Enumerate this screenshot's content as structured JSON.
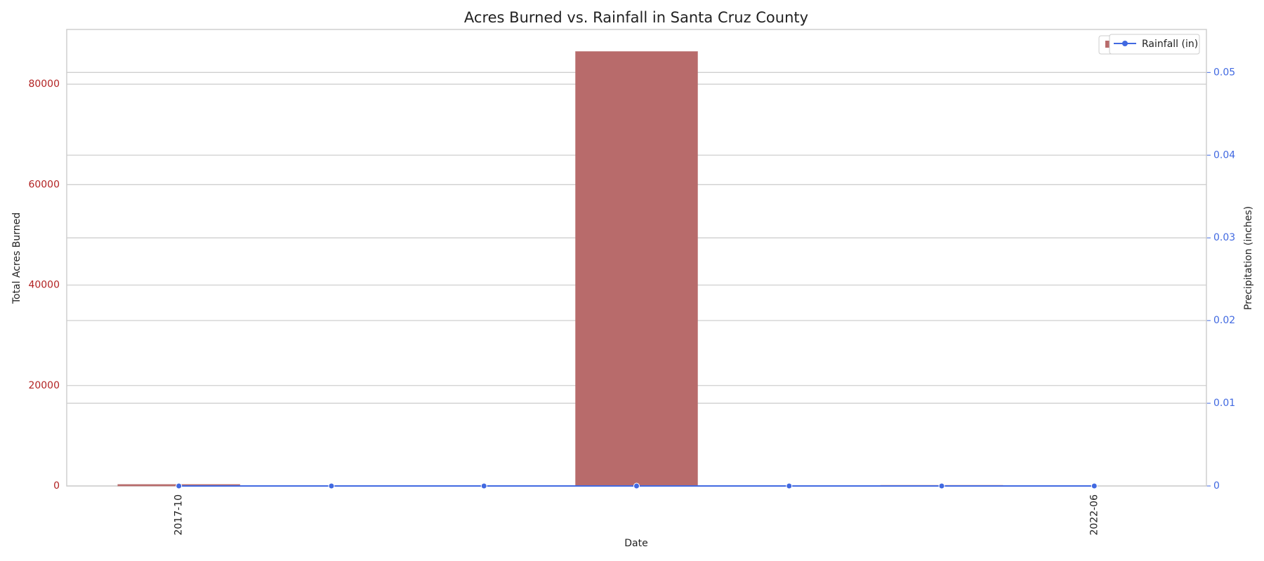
{
  "chart_data": {
    "type": "bar_line",
    "title": "Acres Burned vs. Rainfall in Santa Cruz County",
    "x_label": "Date",
    "y_label": "Total Acres Burned",
    "y2_label": "Precipitation (inches)",
    "categories": [
      "2017-10",
      null,
      null,
      null,
      null,
      null,
      "2022-06"
    ],
    "series": [
      {
        "name": "Acres Burned",
        "color": "#b86b6b",
        "values": [
          300,
          0,
          0,
          86500,
          0,
          120,
          0
        ]
      },
      {
        "name": "Rainfall (in)",
        "color": "#4169e1",
        "axis": "y2",
        "values": [
          0,
          0,
          0,
          0,
          0,
          0,
          0
        ]
      }
    ],
    "ylim": [
      0,
      90900
    ],
    "yticks": [
      0,
      20000,
      40000,
      60000,
      80000
    ],
    "y2lim": [
      0,
      0.0552
    ],
    "y2ticks": [
      0.0,
      0.01,
      0.02,
      0.03,
      0.04,
      0.05
    ],
    "y_color": "#b22222",
    "y2_color": "#4169e1",
    "grid": true
  }
}
